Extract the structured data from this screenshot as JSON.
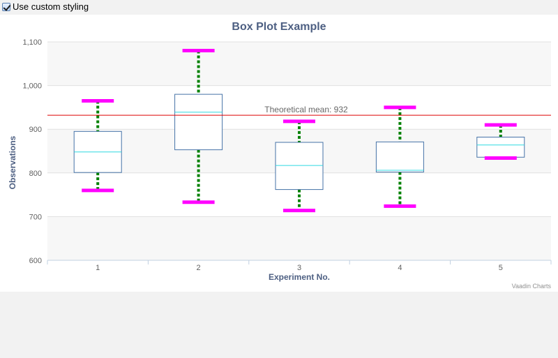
{
  "toolbar": {
    "checkbox_label": "Use custom styling",
    "checkbox_checked": true
  },
  "chart_data": {
    "type": "boxplot",
    "title": "Box Plot Example",
    "xlabel": "Experiment No.",
    "ylabel": "Observations",
    "categories": [
      "1",
      "2",
      "3",
      "4",
      "5"
    ],
    "ylim": [
      600,
      1100
    ],
    "yticks": [
      600,
      700,
      800,
      900,
      1000,
      1100
    ],
    "ytick_labels": [
      "600",
      "700",
      "800",
      "900",
      "1,000",
      "1,100"
    ],
    "series": [
      {
        "boxes": [
          {
            "low": 760,
            "q1": 801,
            "median": 848,
            "q3": 895,
            "high": 965
          },
          {
            "low": 733,
            "q1": 853,
            "median": 939,
            "q3": 980,
            "high": 1080
          },
          {
            "low": 714,
            "q1": 762,
            "median": 817,
            "q3": 870,
            "high": 918
          },
          {
            "low": 724,
            "q1": 802,
            "median": 806,
            "q3": 871,
            "high": 950
          },
          {
            "low": 834,
            "q1": 836,
            "median": 864,
            "q3": 882,
            "high": 910
          }
        ]
      }
    ],
    "plot_line": {
      "value": 932,
      "label": "Theoretical mean: 932",
      "color": "#dd0000"
    },
    "credits": "Vaadin Charts",
    "colors": {
      "box": "#4572a7",
      "median": "#2fd9e0",
      "whisker_cap": "#ff00ff",
      "stem": "#008000",
      "title": "#4d5f82",
      "band": "#f7f7f7"
    },
    "grid": true,
    "alternate_bands": true
  }
}
